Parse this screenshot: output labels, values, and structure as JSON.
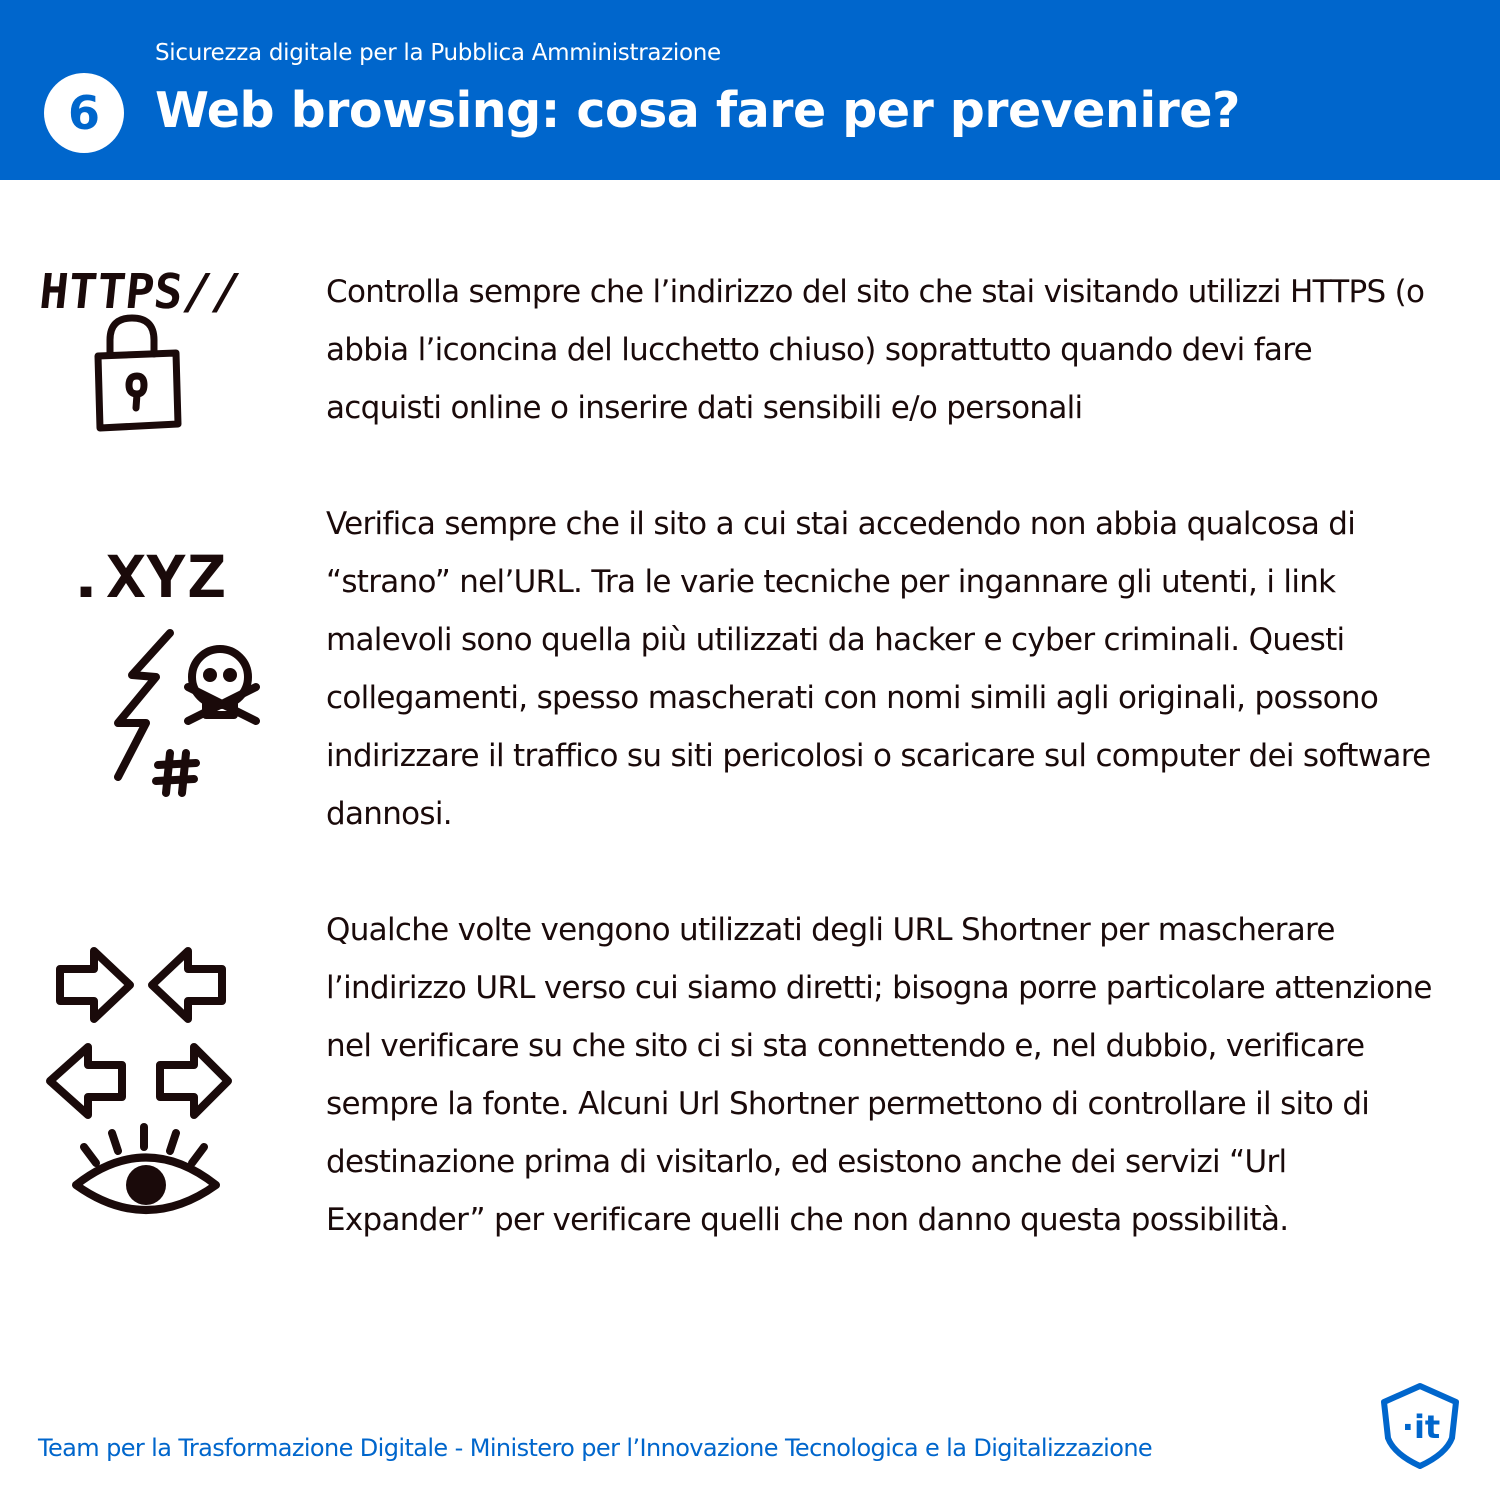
{
  "header": {
    "number": "6",
    "subtitle": "Sicurezza digitale per la Pubblica Amministrazione",
    "title": "Web browsing: cosa fare per prevenire?"
  },
  "sections": [
    {
      "icon": "https-lock-icon",
      "icon_text": "HTTPS//",
      "text": "Controlla sempre che l’indirizzo del sito che stai visitando utilizzi HTTPS (o abbia l’iconcina del lucchetto chiuso) soprattutto quando devi fare acquisti online o inserire dati sensibili e/o personali"
    },
    {
      "icon": "malicious-link-icon",
      "icon_text": ".XYZ",
      "text": "Verifica sempre che il sito a cui stai accedendo non abbia qualcosa di “strano” nel’URL. Tra le varie tecniche per ingannare gli utenti, i link malevoli sono quella più utilizzati da hacker e cyber criminali. Questi collegamenti, spesso mascherati con nomi simili agli originali, possono indirizzare il traffico su siti pericolosi o scaricare sul computer dei software dannosi."
    },
    {
      "icon": "arrows-eye-icon",
      "text": "Qualche volte vengono utilizzati degli URL Shortner per mascherare l’indirizzo URL verso cui siamo diretti; bisogna porre particolare attenzione nel verificare su che sito ci si sta connettendo e, nel dubbio, verificare sempre la fonte. Alcuni Url Shortner permettono di controllare il sito di destinazione prima di visitarlo, ed esistono anche dei servizi “Url Expander” per verificare quelli che non danno questa possibilità."
    }
  ],
  "footer": {
    "text": "Team per la Trasformazione Digitale - Ministero per l’Innovazione Tecnologica e la Digitalizzazione",
    "logo_text": "·it"
  },
  "colors": {
    "brand_blue": "#0066cc",
    "text_dark": "#1a0a0a",
    "background": "#ffffff"
  }
}
